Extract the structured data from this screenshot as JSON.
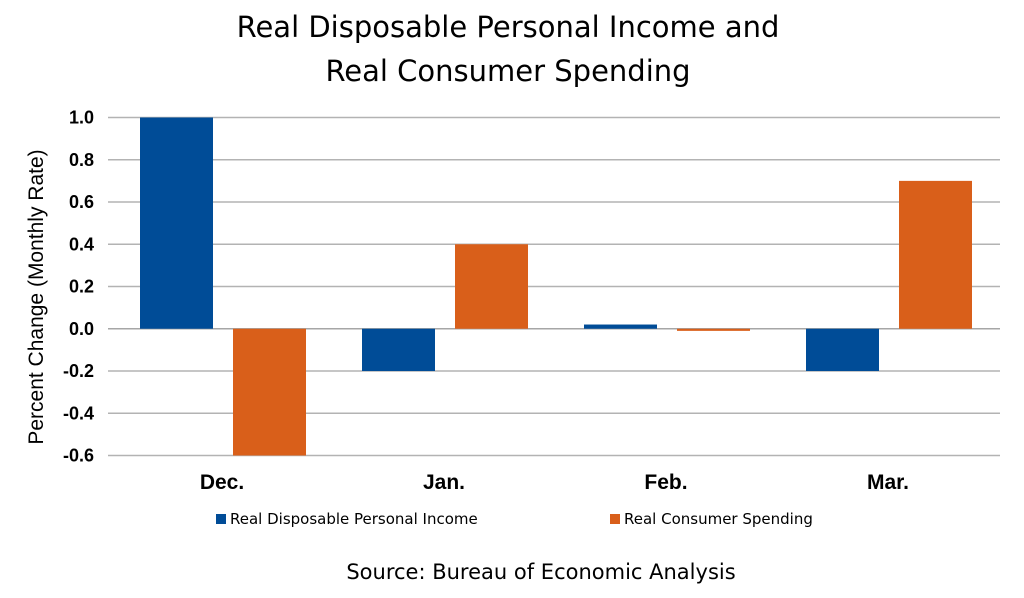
{
  "chart_data": {
    "type": "bar",
    "title_lines": [
      "Real Disposable Personal Income and",
      "Real Consumer Spending"
    ],
    "ylabel": "Percent Change (Monthly Rate)",
    "xlabel": "",
    "categories": [
      "Dec.",
      "Jan.",
      "Feb.",
      "Mar."
    ],
    "series": [
      {
        "name": "Real Disposable Personal Income",
        "color": "#004c97",
        "values": [
          1.0,
          -0.2,
          0.02,
          -0.2
        ]
      },
      {
        "name": "Real Consumer Spending",
        "color": "#d95f1a",
        "values": [
          -0.6,
          0.4,
          -0.01,
          0.7
        ]
      }
    ],
    "ylim": [
      -0.6,
      1.0
    ],
    "yticks": [
      1.0,
      0.8,
      0.6,
      0.4,
      0.2,
      0.0,
      -0.2,
      -0.4,
      -0.6
    ],
    "ytick_labels": [
      "1.0",
      "0.8",
      "0.6",
      "0.4",
      "0.2",
      "0.0",
      "-0.2",
      "-0.4",
      "-0.6"
    ],
    "grid": true,
    "legend_position": "bottom",
    "source": "Source:  Bureau of Economic Analysis"
  }
}
